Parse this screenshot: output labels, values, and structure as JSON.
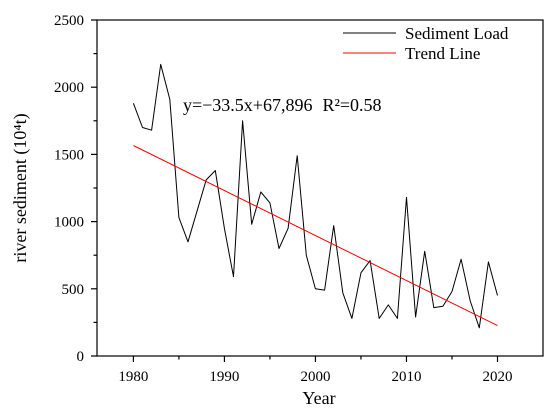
{
  "chart_data": {
    "type": "line",
    "xlabel": "Year",
    "ylabel": "river sediment (10⁴t)",
    "xlim": [
      1976,
      2025
    ],
    "ylim": [
      0,
      2500
    ],
    "xticks": [
      1980,
      1990,
      2000,
      2010,
      2020
    ],
    "yticks": [
      0,
      500,
      1000,
      1500,
      2000,
      2500
    ],
    "x_minor_step": 5,
    "y_minor_step": 250,
    "grid": false,
    "legend": "top-right",
    "series": [
      {
        "name": "Sediment Load",
        "color": "#000000",
        "x": [
          1980,
          1981,
          1982,
          1983,
          1984,
          1985,
          1986,
          1987,
          1988,
          1989,
          1990,
          1991,
          1992,
          1993,
          1994,
          1995,
          1996,
          1997,
          1998,
          1999,
          2000,
          2001,
          2002,
          2003,
          2004,
          2005,
          2006,
          2007,
          2008,
          2009,
          2010,
          2011,
          2012,
          2013,
          2014,
          2015,
          2016,
          2017,
          2018,
          2019,
          2020
        ],
        "values": [
          1880,
          1700,
          1680,
          2170,
          1910,
          1030,
          850,
          1080,
          1310,
          1380,
          950,
          590,
          1750,
          980,
          1220,
          1140,
          800,
          950,
          1490,
          750,
          500,
          490,
          970,
          470,
          280,
          620,
          710,
          280,
          380,
          280,
          1180,
          290,
          780,
          360,
          370,
          480,
          720,
          410,
          210,
          700,
          450
        ]
      },
      {
        "name": "Trend Line",
        "color": "#ff0000",
        "x": [
          1980,
          2020
        ],
        "values": [
          1566,
          226
        ]
      }
    ],
    "annotation": {
      "equation": "y=−33.5x+67,896",
      "r_squared": "R²=0.58"
    }
  }
}
